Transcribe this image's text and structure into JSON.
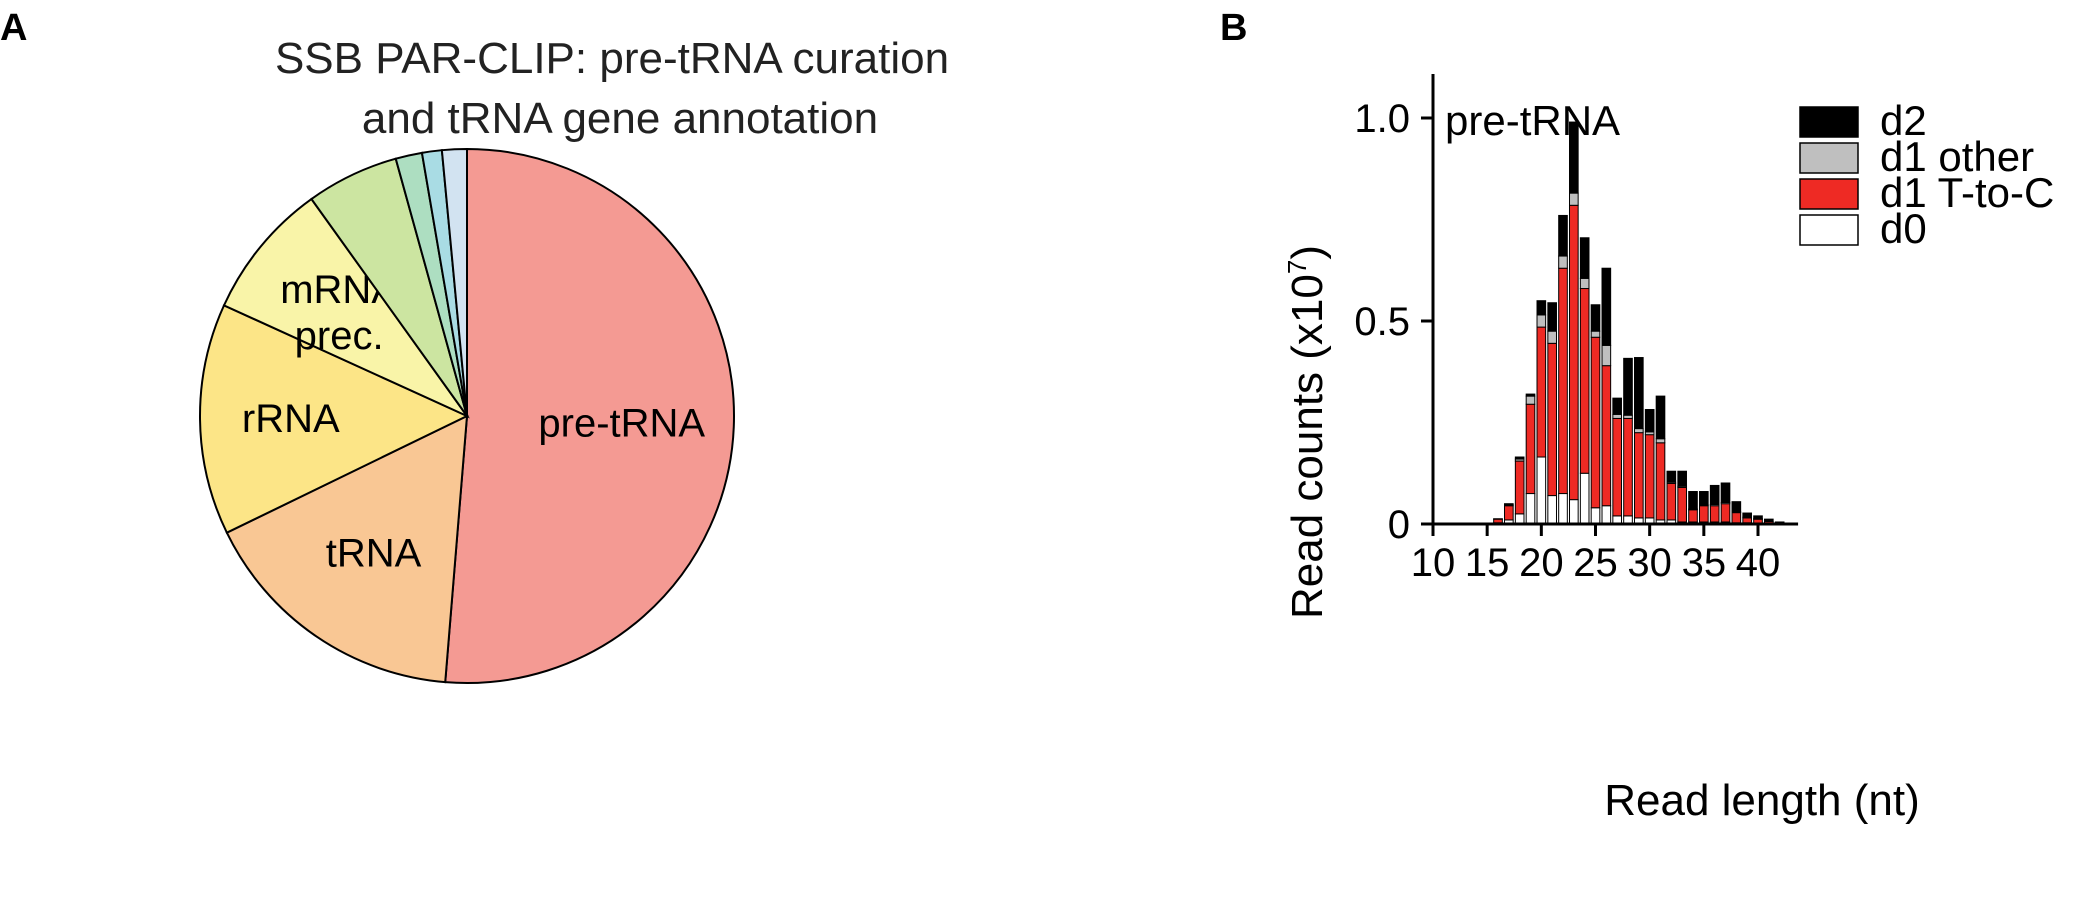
{
  "panels": {
    "a_letter": "A",
    "b_letter": "B"
  },
  "chart_data": [
    {
      "type": "pie",
      "title_lines": [
        "SSB PAR-CLIP: pre-tRNA curation",
        "and tRNA gene annotation"
      ],
      "slices": [
        {
          "label": "pre-tRNA",
          "value": 51.3,
          "color": "#F49A93"
        },
        {
          "label": "tRNA",
          "value": 16.5,
          "color": "#F9C794"
        },
        {
          "label": "rRNA",
          "value": 14.0,
          "color": "#FCE587"
        },
        {
          "label": "mRNA prec.",
          "value": 8.3,
          "color": "#F9F4A8"
        },
        {
          "label": "",
          "value": 5.6,
          "color": "#CCE5A1"
        },
        {
          "label": "",
          "value": 1.6,
          "color": "#ADDEC1"
        },
        {
          "label": "",
          "value": 1.2,
          "color": "#A9DCE4"
        },
        {
          "label": "",
          "value": 1.5,
          "color": "#D2E3F1"
        }
      ]
    },
    {
      "type": "bar",
      "stacked": true,
      "inset_label": "pre-tRNA",
      "xlabel": "Read length (nt)",
      "ylabel": "Read counts (x10",
      "ylabel_sup": "7",
      "ylabel_close": ")",
      "xlim": [
        10,
        43.5
      ],
      "ylim": [
        0,
        1.1
      ],
      "xticks": [
        "10",
        "15",
        "20",
        "25",
        "30",
        "35",
        "40"
      ],
      "yticks": [
        "0",
        "0.5",
        "1.0"
      ],
      "legend": [
        {
          "label": "d2",
          "color": "#000000"
        },
        {
          "label": "d1 other",
          "color": "#BFBFBF"
        },
        {
          "label": "d1 T-to-C",
          "color": "#EE2A24"
        },
        {
          "label": "d0",
          "color": "#FFFFFF"
        }
      ],
      "legend_position": "top-right",
      "x": [
        14,
        15,
        16,
        17,
        18,
        19,
        20,
        21,
        22,
        23,
        24,
        25,
        26,
        27,
        28,
        29,
        30,
        31,
        32,
        33,
        34,
        35,
        36,
        37,
        38,
        39,
        40,
        41,
        42,
        43
      ],
      "series": [
        {
          "name": "d0",
          "values": [
            0.0,
            0.0,
            0.003,
            0.01,
            0.025,
            0.075,
            0.165,
            0.07,
            0.075,
            0.06,
            0.125,
            0.04,
            0.045,
            0.02,
            0.02,
            0.015,
            0.015,
            0.01,
            0.01,
            0.005,
            0.005,
            0.005,
            0.005,
            0.005,
            0.003,
            0.003,
            0.002,
            0.002,
            0.001,
            0.0
          ]
        },
        {
          "name": "d1 T-to-C",
          "values": [
            0.0,
            0.002,
            0.009,
            0.035,
            0.13,
            0.22,
            0.32,
            0.375,
            0.555,
            0.725,
            0.455,
            0.42,
            0.345,
            0.24,
            0.24,
            0.21,
            0.205,
            0.19,
            0.09,
            0.085,
            0.03,
            0.04,
            0.04,
            0.045,
            0.025,
            0.012,
            0.01,
            0.004,
            0.002,
            0.001
          ]
        },
        {
          "name": "d1 other",
          "values": [
            0.0,
            0.0,
            0.0,
            0.002,
            0.005,
            0.02,
            0.03,
            0.03,
            0.03,
            0.03,
            0.025,
            0.015,
            0.05,
            0.01,
            0.008,
            0.01,
            0.007,
            0.01,
            0.003,
            0.003,
            0.002,
            0.002,
            0.003,
            0.003,
            0.002,
            0.002,
            0.001,
            0.0,
            0.0,
            0.0
          ]
        },
        {
          "name": "d2",
          "values": [
            0.0,
            0.0,
            0.001,
            0.003,
            0.005,
            0.005,
            0.035,
            0.07,
            0.1,
            0.175,
            0.1,
            0.065,
            0.19,
            0.04,
            0.14,
            0.175,
            0.055,
            0.105,
            0.027,
            0.037,
            0.043,
            0.033,
            0.047,
            0.048,
            0.025,
            0.01,
            0.007,
            0.006,
            0.002,
            0.001
          ]
        }
      ]
    }
  ]
}
